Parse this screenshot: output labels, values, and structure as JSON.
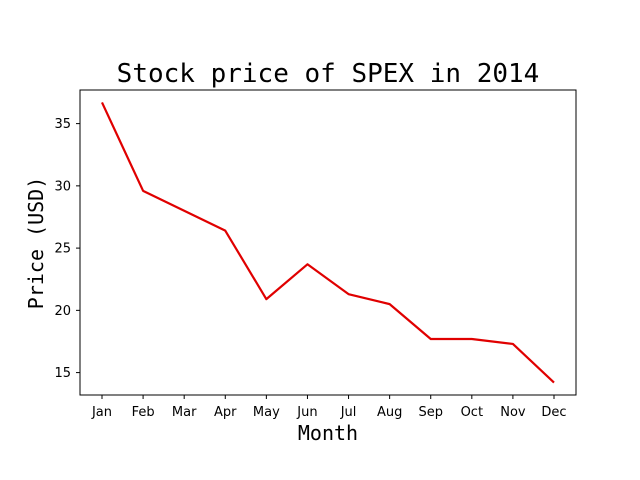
{
  "chart_data": {
    "type": "line",
    "title": "Stock price of SPEX in 2014",
    "xlabel": "Month",
    "ylabel": "Price (USD)",
    "categories": [
      "Jan",
      "Feb",
      "Mar",
      "Apr",
      "May",
      "Jun",
      "Jul",
      "Aug",
      "Sep",
      "Oct",
      "Nov",
      "Dec"
    ],
    "series": [
      {
        "values": [
          36.7,
          29.6,
          28.0,
          26.4,
          20.9,
          23.7,
          21.3,
          20.5,
          17.7,
          17.7,
          17.3,
          14.2
        ],
        "color": "#e00000"
      }
    ],
    "ylim": [
      13.2,
      37.7
    ],
    "yticks": [
      15,
      20,
      25,
      30,
      35
    ],
    "grid": false,
    "legend": "none"
  }
}
